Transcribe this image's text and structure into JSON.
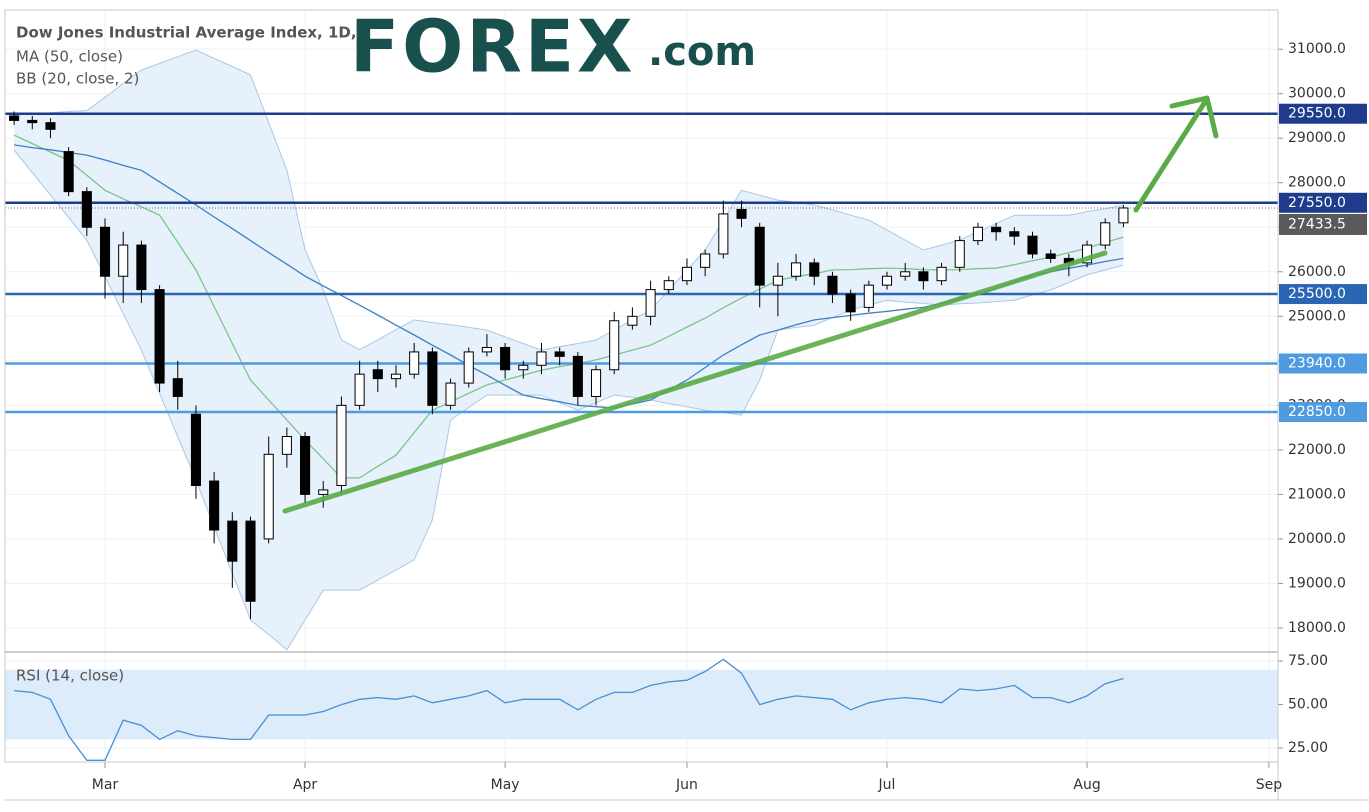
{
  "chart_data": [
    {
      "type": "candlestick",
      "title": "Dow Jones Industrial Average Index, 1D,",
      "logo": {
        "brand": "FOREX",
        "suffix": ".com"
      },
      "categories": [
        null,
        null,
        null,
        null,
        null,
        "Mar",
        null,
        null,
        null,
        null,
        null,
        null,
        null,
        null,
        null,
        null,
        "Apr",
        null,
        null,
        null,
        null,
        null,
        null,
        null,
        null,
        null,
        null,
        "May",
        null,
        null,
        null,
        null,
        null,
        null,
        null,
        null,
        null,
        "Jun",
        null,
        null,
        null,
        null,
        null,
        null,
        null,
        null,
        null,
        null,
        "Jul",
        null,
        null,
        null,
        null,
        null,
        null,
        null,
        null,
        null,
        null,
        "Aug",
        null,
        null,
        null,
        null,
        null,
        null,
        null,
        null,
        null,
        "Sep"
      ],
      "open": [
        29500,
        29400,
        29350,
        28700,
        27800,
        27000,
        25900,
        26600,
        25600,
        23600,
        22800,
        21300,
        20400,
        20400,
        20000,
        21900,
        22300,
        21000,
        21200,
        23000,
        23800,
        23600,
        23700,
        24200,
        23000,
        23500,
        24200,
        24300,
        23800,
        23900,
        24200,
        24100,
        23200,
        23800,
        24800,
        25000,
        25600,
        25800,
        26100,
        26400,
        27400,
        27000,
        25700,
        25900,
        26200,
        25900,
        25500,
        25200,
        25700,
        25900,
        26000,
        25800,
        26100,
        26700,
        27000,
        26900,
        26800,
        26400,
        26300,
        26200,
        26600,
        27100,
        null,
        null,
        null,
        null,
        null,
        null,
        null,
        null
      ],
      "high": [
        29600,
        29500,
        29450,
        28800,
        27900,
        27200,
        26900,
        26700,
        25700,
        24000,
        23000,
        21500,
        20600,
        20500,
        22300,
        22500,
        22400,
        21300,
        23200,
        24000,
        24000,
        23900,
        24400,
        24300,
        23600,
        24300,
        24600,
        24400,
        24000,
        24400,
        24300,
        24200,
        23900,
        25100,
        25200,
        25800,
        25900,
        26300,
        26500,
        27600,
        27600,
        27100,
        26200,
        26400,
        26300,
        26000,
        25600,
        25800,
        26000,
        26200,
        26100,
        26200,
        26800,
        27100,
        27100,
        27000,
        26900,
        26500,
        26400,
        26700,
        27200,
        27500,
        null,
        null,
        null,
        null,
        null,
        null,
        null,
        null
      ],
      "low": [
        29300,
        29200,
        29000,
        27700,
        26800,
        25400,
        25300,
        25300,
        23300,
        22900,
        20900,
        19900,
        18900,
        18200,
        19900,
        21600,
        20800,
        20700,
        21000,
        22900,
        23300,
        23400,
        23600,
        22800,
        22900,
        23400,
        24100,
        23600,
        23600,
        23700,
        23900,
        23000,
        23000,
        23700,
        24700,
        24800,
        25500,
        25700,
        25900,
        26300,
        27000,
        25200,
        25000,
        25800,
        25700,
        25300,
        24900,
        25100,
        25600,
        25800,
        25600,
        25700,
        26000,
        26600,
        26700,
        26600,
        26300,
        26200,
        25900,
        26100,
        26500,
        27000,
        null,
        null,
        null,
        null,
        null,
        null,
        null,
        null
      ],
      "close": [
        29400,
        29350,
        29200,
        27800,
        27000,
        25900,
        26600,
        25600,
        23500,
        23200,
        21200,
        20200,
        19500,
        18600,
        21900,
        22300,
        21000,
        21100,
        23000,
        23700,
        23600,
        23700,
        24200,
        23000,
        23500,
        24200,
        24300,
        23800,
        23900,
        24200,
        24100,
        23200,
        23800,
        24900,
        25000,
        25600,
        25800,
        26100,
        26400,
        27300,
        27200,
        25700,
        25900,
        26200,
        25900,
        25500,
        25100,
        25700,
        25900,
        26000,
        25800,
        26100,
        26700,
        27000,
        26900,
        26800,
        26400,
        26300,
        26200,
        26600,
        27100,
        27433.5,
        null,
        null,
        null,
        null,
        null,
        null,
        null,
        null
      ],
      "up_color": "#ffffff",
      "down_color": "#000000",
      "series": [
        {
          "name": "MA (50, close)",
          "color": "#3f7fc3",
          "values": [
            28850,
            28790,
            28740,
            28680,
            28620,
            28510,
            28390,
            28280,
            28020,
            27760,
            27500,
            27230,
            26970,
            26700,
            26430,
            26170,
            25900,
            25680,
            25470,
            25250,
            25030,
            24800,
            24580,
            24350,
            24130,
            23900,
            23680,
            23450,
            23230,
            23150,
            23080,
            23000,
            22970,
            22940,
            23030,
            23120,
            23350,
            23570,
            23850,
            24130,
            24360,
            24580,
            24690,
            24810,
            24920,
            24970,
            25020,
            25070,
            25110,
            25160,
            25200,
            25290,
            25390,
            25480,
            25630,
            25780,
            25930,
            26000,
            26080,
            26150,
            26230,
            26300,
            null,
            null,
            null,
            null,
            null,
            null,
            null,
            null
          ]
        }
      ],
      "bands": {
        "name": "BB (20, close, 2)",
        "basis_color": "#7cc48a",
        "color": "#a9c8e6",
        "fill": "#e6f1fb",
        "basis": [
          29070,
          28880,
          28690,
          28500,
          28170,
          27830,
          27640,
          27460,
          27270,
          26660,
          26040,
          25220,
          24390,
          23570,
          23120,
          22670,
          22220,
          21800,
          21370,
          21370,
          21630,
          21880,
          22390,
          22890,
          23080,
          23270,
          23460,
          23570,
          23680,
          23790,
          23870,
          23940,
          24020,
          24130,
          24240,
          24350,
          24550,
          24760,
          24960,
          25190,
          25410,
          25610,
          25810,
          25890,
          25960,
          26040,
          26050,
          26070,
          26080,
          26070,
          26050,
          26040,
          26050,
          26070,
          26080,
          26160,
          26250,
          26330,
          26430,
          26530,
          26660,
          26780,
          null,
          null,
          null,
          null,
          null,
          null,
          null,
          null
        ],
        "upper": [
          29520,
          29550,
          29570,
          29600,
          29620,
          29920,
          30230,
          30530,
          30680,
          30830,
          30980,
          30790,
          30610,
          30420,
          29350,
          28280,
          26490,
          25590,
          24470,
          24250,
          24470,
          24700,
          24920,
          24860,
          24810,
          24750,
          24690,
          24540,
          24390,
          24240,
          24320,
          24390,
          24470,
          24690,
          24920,
          25140,
          25590,
          26040,
          26490,
          27160,
          27830,
          27720,
          27610,
          27560,
          27500,
          27390,
          27270,
          27160,
          26940,
          26710,
          26490,
          26600,
          26710,
          26900,
          27080,
          27270,
          27270,
          27270,
          27270,
          27350,
          27420,
          27500,
          null,
          null,
          null,
          null,
          null,
          null,
          null,
          null
        ],
        "lower": [
          28730,
          28230,
          27720,
          27220,
          26710,
          25890,
          25060,
          24240,
          23270,
          22290,
          21320,
          20270,
          19230,
          18180,
          17850,
          17510,
          18180,
          18850,
          18850,
          18850,
          19080,
          19300,
          19530,
          20430,
          22670,
          22950,
          23230,
          23230,
          23230,
          23230,
          23060,
          22890,
          23060,
          23230,
          23180,
          23120,
          23040,
          22970,
          22890,
          22840,
          22780,
          23570,
          24690,
          24750,
          24800,
          24970,
          25140,
          25250,
          25360,
          25320,
          25290,
          25250,
          25280,
          25300,
          25330,
          25360,
          25480,
          25590,
          25760,
          25930,
          26040,
          26150,
          null,
          null,
          null,
          null,
          null,
          null,
          null,
          null
        ]
      },
      "levels": [
        {
          "value": 29550,
          "label": "29550.0",
          "color": "#1f3b8c"
        },
        {
          "value": 27550,
          "label": "27550.0",
          "color": "#1f3b8c"
        },
        {
          "value": 25500,
          "label": "25500.0",
          "color": "#2a66b4"
        },
        {
          "value": 23940,
          "label": "23940.0",
          "color": "#4e9be0"
        },
        {
          "value": 22850,
          "label": "22850.0",
          "color": "#4e9be0"
        }
      ],
      "last_price": {
        "value": 27433.5,
        "label": "27433.5",
        "color": "#5a5a5a"
      },
      "ylim": [
        17460,
        31880
      ],
      "yticks": [
        {
          "value": 18000,
          "label": "18000.0"
        },
        {
          "value": 19000,
          "label": "19000.0"
        },
        {
          "value": 20000,
          "label": "20000.0"
        },
        {
          "value": 21000,
          "label": "21000.0"
        },
        {
          "value": 22000,
          "label": "22000.0"
        },
        {
          "value": 23000,
          "label": "23000.0"
        },
        {
          "value": 24000,
          "label": "24000.0"
        },
        {
          "value": 25000,
          "label": "25000.0"
        },
        {
          "value": 26000,
          "label": "26000.0"
        },
        {
          "value": 27000,
          "label": "27000.0"
        },
        {
          "value": 28000,
          "label": "28000.0"
        },
        {
          "value": 29000,
          "label": "29000.0"
        },
        {
          "value": 30000,
          "label": "30000.0"
        },
        {
          "value": 31000,
          "label": "31000.0"
        }
      ],
      "grid": true
    },
    {
      "type": "line",
      "title": "RSI (14, close)",
      "color": "#4a8fd0",
      "values": [
        58,
        57,
        53,
        32,
        18,
        18,
        41,
        38,
        30,
        35,
        32,
        31,
        30,
        30,
        44,
        44,
        44,
        46,
        50,
        53,
        54,
        53,
        55,
        51,
        53,
        55,
        58,
        51,
        53,
        53,
        53,
        47,
        53,
        57,
        57,
        61,
        63,
        64,
        69,
        76,
        68,
        50,
        53,
        55,
        54,
        53,
        47,
        51,
        53,
        54,
        53,
        51,
        59,
        58,
        59,
        61,
        54,
        54,
        51,
        55,
        62,
        65,
        null,
        null,
        null,
        null,
        null,
        null,
        null,
        null
      ],
      "band": [
        30,
        70
      ],
      "band_color": "#dcecfb",
      "ylim": [
        17,
        80.2
      ],
      "yticks": [
        {
          "value": 25,
          "label": "25.00"
        },
        {
          "value": 50,
          "label": "50.00"
        },
        {
          "value": 75,
          "label": "75.00"
        }
      ],
      "grid": true
    }
  ]
}
